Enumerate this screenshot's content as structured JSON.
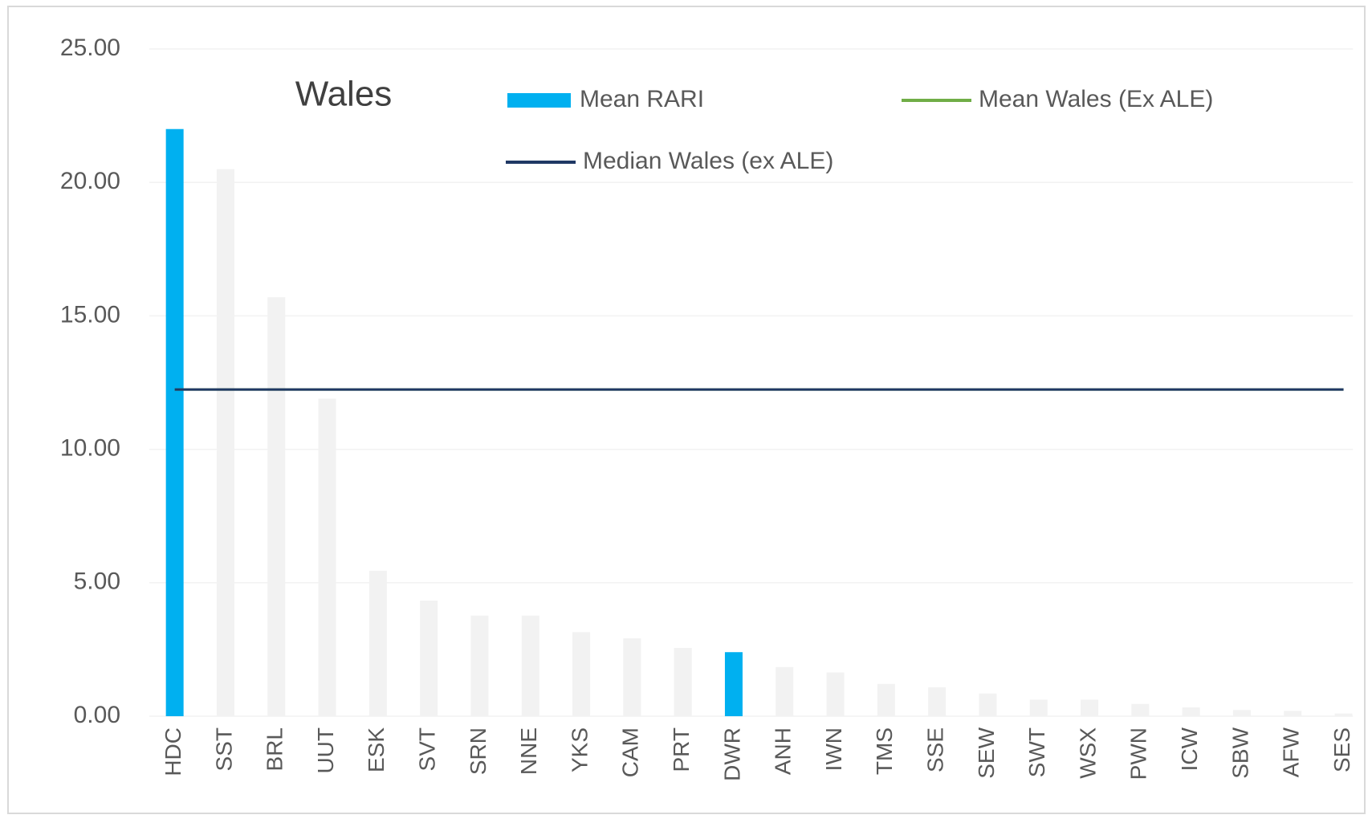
{
  "chart_data": {
    "type": "bar",
    "title": "Wales",
    "categories": [
      "HDC",
      "SST",
      "BRL",
      "UUT",
      "ESK",
      "SVT",
      "SRN",
      "NNE",
      "YKS",
      "CAM",
      "PRT",
      "DWR",
      "ANH",
      "IWN",
      "TMS",
      "SSE",
      "SEW",
      "SWT",
      "WSX",
      "PWN",
      "ICW",
      "SBW",
      "AFW",
      "SES"
    ],
    "series": [
      {
        "name": "Mean RARI",
        "color": "#00b0f0",
        "colors": [
          "#00b0f0",
          "#f2f2f2",
          "#f2f2f2",
          "#f2f2f2",
          "#f2f2f2",
          "#f2f2f2",
          "#f2f2f2",
          "#f2f2f2",
          "#f2f2f2",
          "#f2f2f2",
          "#f2f2f2",
          "#00b0f0",
          "#f2f2f2",
          "#f2f2f2",
          "#f2f2f2",
          "#f2f2f2",
          "#f2f2f2",
          "#f2f2f2",
          "#f2f2f2",
          "#f2f2f2",
          "#f2f2f2",
          "#f2f2f2",
          "#f2f2f2",
          "#f2f2f2"
        ],
        "values": [
          22.0,
          20.5,
          15.7,
          11.9,
          5.45,
          4.33,
          3.77,
          3.77,
          3.15,
          2.92,
          2.56,
          2.4,
          1.84,
          1.64,
          1.21,
          1.08,
          0.85,
          0.62,
          0.62,
          0.46,
          0.33,
          0.23,
          0.2,
          0.1
        ]
      }
    ],
    "lines": [
      {
        "name": "Mean Wales (Ex ALE)",
        "color": "#70ad47",
        "value": 12.24
      },
      {
        "name": "Median Wales (ex ALE)",
        "color": "#1f3864",
        "value": 12.24
      }
    ],
    "ylim": [
      0,
      25
    ],
    "yticks": [
      {
        "value": 0,
        "label": "0.00"
      },
      {
        "value": 5,
        "label": "5.00"
      },
      {
        "value": 10,
        "label": "10.00"
      },
      {
        "value": 15,
        "label": "15.00"
      },
      {
        "value": 20,
        "label": "20.00"
      },
      {
        "value": 25,
        "label": "25.00"
      }
    ],
    "grid": true
  }
}
